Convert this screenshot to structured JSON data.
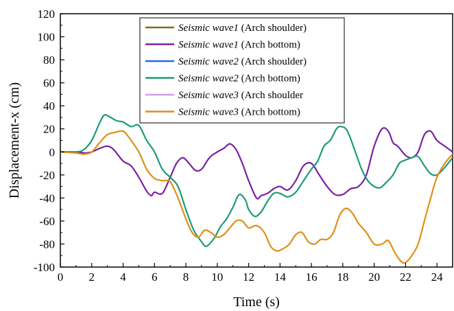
{
  "chart_data": {
    "type": "line",
    "title": "",
    "xlabel": "Time (s)",
    "ylabel": "Displacement-x (cm)",
    "xlim": [
      0,
      25
    ],
    "ylim": [
      -100,
      120
    ],
    "x_ticks": [
      0,
      2,
      4,
      6,
      8,
      10,
      12,
      14,
      16,
      18,
      20,
      22,
      24
    ],
    "y_ticks": [
      -100,
      -80,
      -60,
      -40,
      -20,
      0,
      20,
      40,
      60,
      80,
      100,
      120
    ],
    "grid": false,
    "legend_position": "top-center",
    "series": [
      {
        "name": "Seismic wave1 (Arch shoulder)",
        "legend_italic": "Seismic wave1",
        "legend_rest": " (Arch shoulder)",
        "color": "#8B6914",
        "points": []
      },
      {
        "name": "Seismic wave1 (Arch bottom)",
        "legend_italic": "Seismic wave1",
        "legend_rest": " (Arch bottom)",
        "color": "#7B1FA2",
        "points": [
          [
            0,
            0
          ],
          [
            1,
            0
          ],
          [
            1.6,
            -1
          ],
          [
            2,
            0
          ],
          [
            2.5,
            3
          ],
          [
            3,
            5
          ],
          [
            3.4,
            2
          ],
          [
            4,
            -8
          ],
          [
            4.5,
            -12
          ],
          [
            5,
            -22
          ],
          [
            5.5,
            -34
          ],
          [
            5.8,
            -38
          ],
          [
            6,
            -35
          ],
          [
            6.5,
            -36
          ],
          [
            7,
            -22
          ],
          [
            7.4,
            -10
          ],
          [
            7.8,
            -5
          ],
          [
            8.2,
            -10
          ],
          [
            8.6,
            -16
          ],
          [
            9,
            -15
          ],
          [
            9.5,
            -5
          ],
          [
            10,
            0
          ],
          [
            10.4,
            3
          ],
          [
            10.8,
            7
          ],
          [
            11.2,
            2
          ],
          [
            11.6,
            -10
          ],
          [
            12,
            -25
          ],
          [
            12.5,
            -40
          ],
          [
            12.8,
            -38
          ],
          [
            13.2,
            -36
          ],
          [
            13.6,
            -32
          ],
          [
            14,
            -30
          ],
          [
            14.5,
            -33
          ],
          [
            15,
            -25
          ],
          [
            15.5,
            -12
          ],
          [
            16,
            -10
          ],
          [
            16.5,
            -20
          ],
          [
            17,
            -30
          ],
          [
            17.5,
            -37
          ],
          [
            18,
            -37
          ],
          [
            18.5,
            -32
          ],
          [
            19,
            -30
          ],
          [
            19.5,
            -20
          ],
          [
            20,
            5
          ],
          [
            20.5,
            20
          ],
          [
            20.9,
            18
          ],
          [
            21.2,
            8
          ],
          [
            21.5,
            5
          ],
          [
            22,
            -3
          ],
          [
            22.4,
            -5
          ],
          [
            22.8,
            0
          ],
          [
            23.2,
            15
          ],
          [
            23.6,
            18
          ],
          [
            24,
            10
          ],
          [
            24.5,
            5
          ],
          [
            25,
            0
          ]
        ]
      },
      {
        "name": "Seismic wave2 (Arch shoulder)",
        "legend_italic": "Seismic wave2",
        "legend_rest": " (Arch shoulder)",
        "color": "#1E6FD9",
        "points": []
      },
      {
        "name": "Seismic wave2 (Arch bottom)",
        "legend_italic": "Seismic wave2",
        "legend_rest": " (Arch bottom)",
        "color": "#1A9A7A",
        "points": [
          [
            0,
            0
          ],
          [
            1,
            0
          ],
          [
            1.5,
            2
          ],
          [
            2,
            10
          ],
          [
            2.5,
            25
          ],
          [
            2.8,
            32
          ],
          [
            3.2,
            30
          ],
          [
            3.6,
            27
          ],
          [
            4,
            26
          ],
          [
            4.5,
            22
          ],
          [
            5,
            23
          ],
          [
            5.5,
            10
          ],
          [
            6,
            0
          ],
          [
            6.5,
            -15
          ],
          [
            7,
            -22
          ],
          [
            7.5,
            -30
          ],
          [
            8,
            -50
          ],
          [
            8.5,
            -68
          ],
          [
            9,
            -78
          ],
          [
            9.3,
            -82
          ],
          [
            9.8,
            -75
          ],
          [
            10.2,
            -65
          ],
          [
            10.6,
            -58
          ],
          [
            11,
            -48
          ],
          [
            11.4,
            -37
          ],
          [
            11.8,
            -42
          ],
          [
            12,
            -50
          ],
          [
            12.4,
            -56
          ],
          [
            12.8,
            -52
          ],
          [
            13.2,
            -43
          ],
          [
            13.6,
            -36
          ],
          [
            14,
            -36
          ],
          [
            14.5,
            -39
          ],
          [
            15,
            -35
          ],
          [
            15.5,
            -25
          ],
          [
            16,
            -15
          ],
          [
            16.4,
            -8
          ],
          [
            16.8,
            5
          ],
          [
            17.2,
            10
          ],
          [
            17.6,
            20
          ],
          [
            17.9,
            22
          ],
          [
            18.3,
            18
          ],
          [
            18.8,
            0
          ],
          [
            19.2,
            -15
          ],
          [
            19.6,
            -25
          ],
          [
            20,
            -30
          ],
          [
            20.4,
            -31
          ],
          [
            20.8,
            -26
          ],
          [
            21.2,
            -20
          ],
          [
            21.6,
            -10
          ],
          [
            22,
            -7
          ],
          [
            22.4,
            -5
          ],
          [
            22.8,
            -4
          ],
          [
            23.2,
            -12
          ],
          [
            23.6,
            -19
          ],
          [
            24,
            -20
          ],
          [
            24.4,
            -15
          ],
          [
            25,
            -5
          ]
        ]
      },
      {
        "name": "Seismic wave3 (Arch shoulder",
        "legend_italic": "Seismic wave3",
        "legend_rest": " (Arch shoulder",
        "color": "#D59BE6",
        "points": []
      },
      {
        "name": "Seismic wave3 (Arch bottom)",
        "legend_italic": "Seismic wave3",
        "legend_rest": " (Arch bottom)",
        "color": "#E08E12",
        "points": [
          [
            0,
            0
          ],
          [
            1,
            -1
          ],
          [
            1.5,
            -2
          ],
          [
            2,
            0
          ],
          [
            2.5,
            8
          ],
          [
            3,
            15
          ],
          [
            3.5,
            17
          ],
          [
            4,
            18
          ],
          [
            4.4,
            12
          ],
          [
            5,
            0
          ],
          [
            5.5,
            -15
          ],
          [
            6,
            -23
          ],
          [
            6.5,
            -25
          ],
          [
            7,
            -26
          ],
          [
            7.5,
            -40
          ],
          [
            8,
            -58
          ],
          [
            8.4,
            -70
          ],
          [
            8.8,
            -74
          ],
          [
            9.2,
            -68
          ],
          [
            9.6,
            -70
          ],
          [
            10,
            -74
          ],
          [
            10.4,
            -72
          ],
          [
            10.8,
            -66
          ],
          [
            11.2,
            -60
          ],
          [
            11.6,
            -60
          ],
          [
            12,
            -66
          ],
          [
            12.5,
            -64
          ],
          [
            13,
            -70
          ],
          [
            13.4,
            -82
          ],
          [
            13.8,
            -86
          ],
          [
            14.2,
            -84
          ],
          [
            14.6,
            -80
          ],
          [
            15,
            -72
          ],
          [
            15.4,
            -70
          ],
          [
            15.8,
            -78
          ],
          [
            16.2,
            -80
          ],
          [
            16.6,
            -76
          ],
          [
            17,
            -76
          ],
          [
            17.4,
            -70
          ],
          [
            17.8,
            -55
          ],
          [
            18.2,
            -49
          ],
          [
            18.6,
            -53
          ],
          [
            19,
            -62
          ],
          [
            19.5,
            -70
          ],
          [
            20,
            -80
          ],
          [
            20.5,
            -80
          ],
          [
            20.9,
            -77
          ],
          [
            21.3,
            -87
          ],
          [
            21.7,
            -95
          ],
          [
            22,
            -96
          ],
          [
            22.4,
            -90
          ],
          [
            22.8,
            -80
          ],
          [
            23.2,
            -60
          ],
          [
            23.6,
            -40
          ],
          [
            24,
            -22
          ],
          [
            24.5,
            -10
          ],
          [
            25,
            -2
          ]
        ]
      }
    ]
  }
}
